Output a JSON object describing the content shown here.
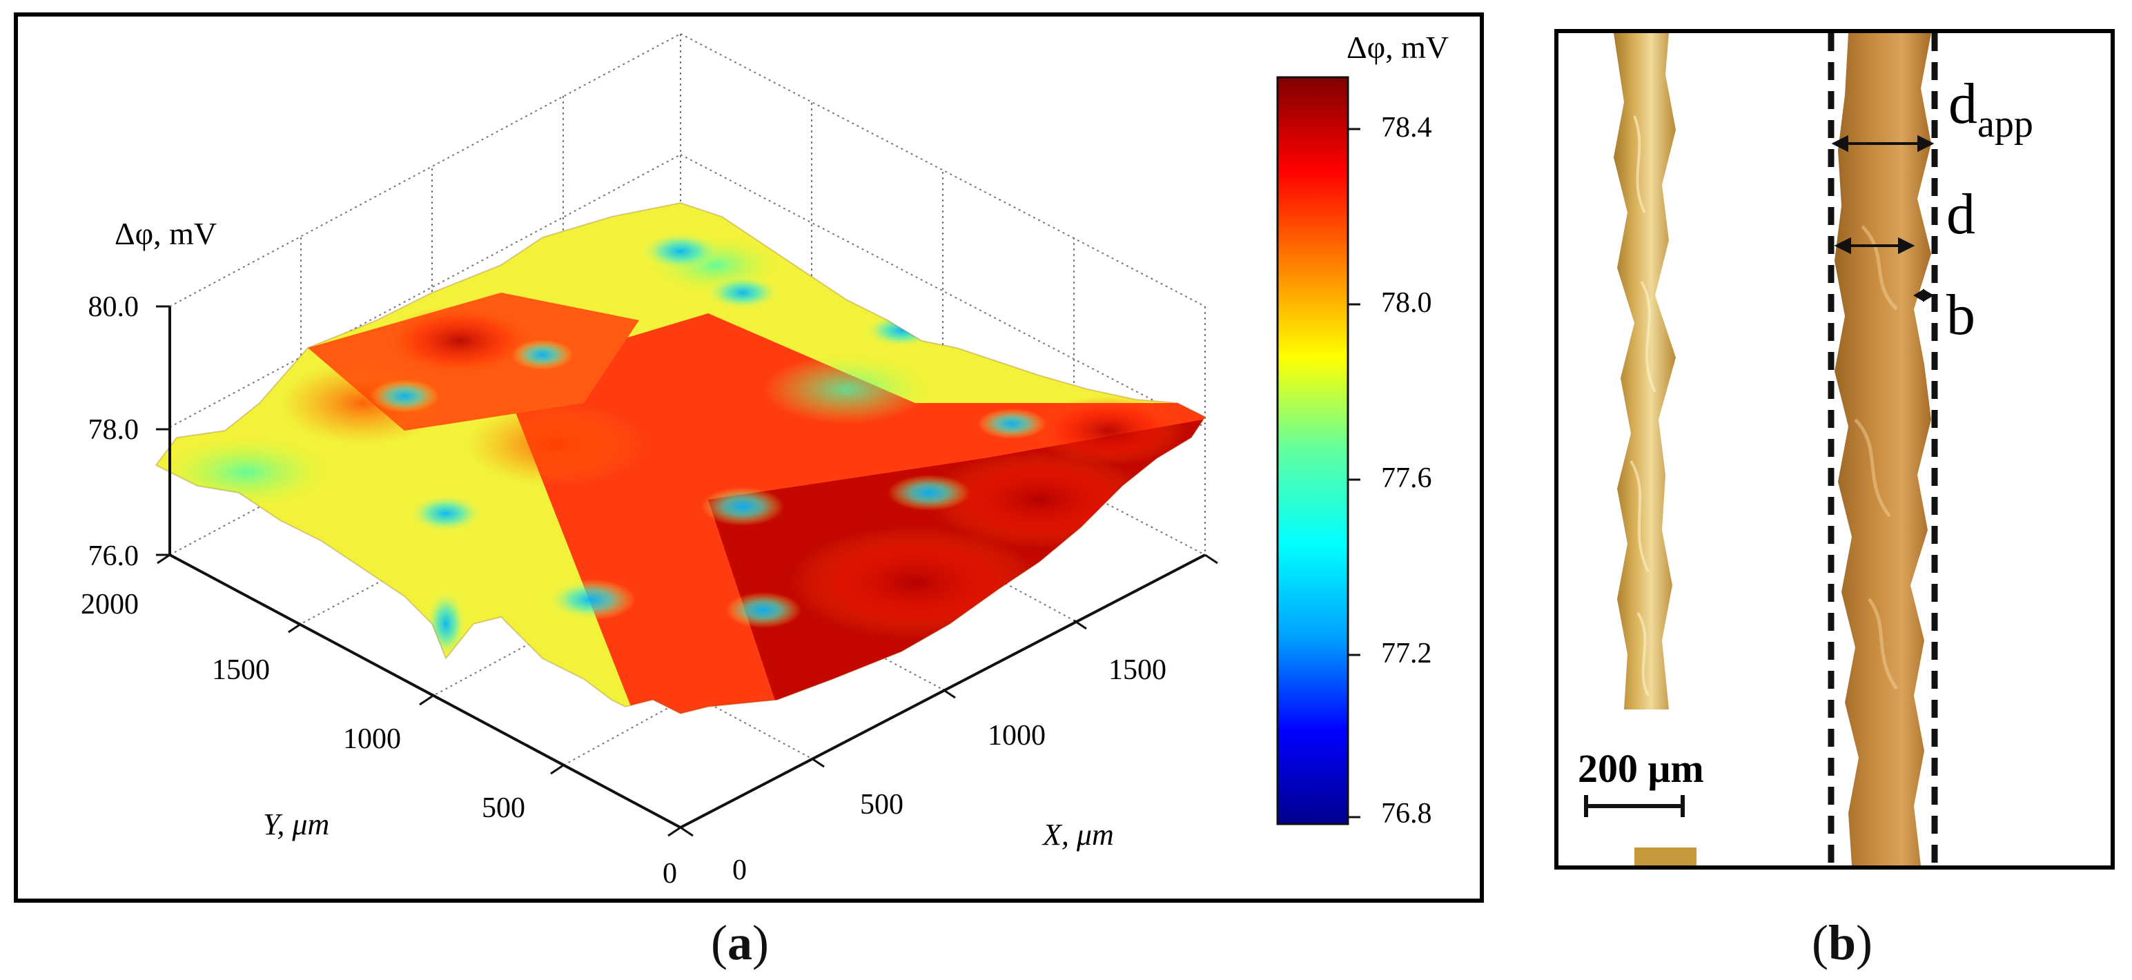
{
  "chart_data": [
    {
      "type": "surface3d",
      "panel_label": "a",
      "zlabel": "Δφ, mV",
      "xlabel": "X, μm",
      "ylabel": "Y, μm",
      "z_ticks": [
        "80.0",
        "78.0",
        "76.0"
      ],
      "y_ticks": [
        "2000",
        "1500",
        "1000",
        "500",
        "0"
      ],
      "x_ticks": [
        "0",
        "500",
        "1000",
        "1500"
      ],
      "xlim": [
        0,
        2000
      ],
      "ylim": [
        0,
        2000
      ],
      "zlim": [
        76,
        80
      ],
      "colorbar": {
        "title": "Δφ, mV",
        "range": [
          76.8,
          78.5
        ],
        "ticks": [
          "78.4",
          "78.0",
          "77.6",
          "77.2",
          "76.8"
        ],
        "colormap": [
          "#00008f",
          "#0000ff",
          "#00a0ff",
          "#00ffff",
          "#60ff9f",
          "#ffff00",
          "#ff8000",
          "#ff0000",
          "#800000"
        ]
      }
    },
    {
      "type": "micrograph",
      "panel_label": "b",
      "annotations": {
        "d_app_main": "d",
        "d_app_sub": "app",
        "d": "d",
        "b": "b"
      },
      "scale_bar": "200 μm",
      "fiber_colors": [
        "#c49a3c",
        "#b97f35"
      ]
    }
  ],
  "captions": {
    "a": "a",
    "b": "b"
  }
}
